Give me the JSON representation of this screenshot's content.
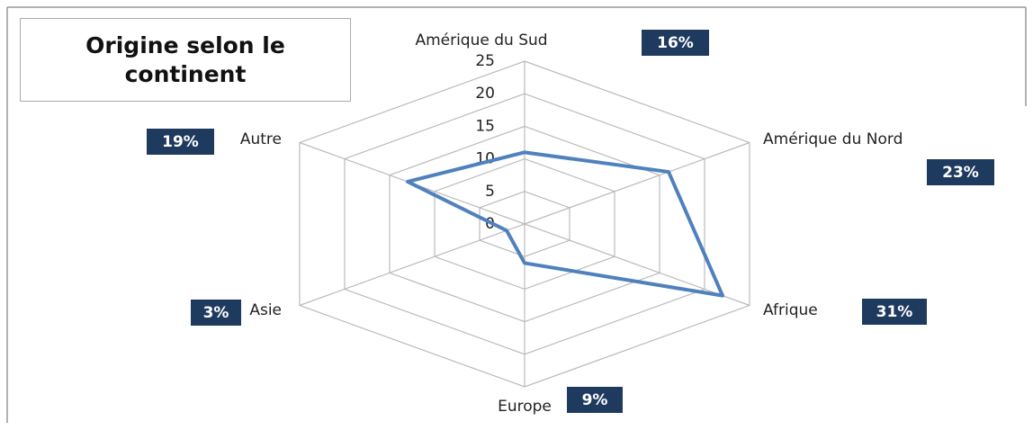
{
  "chart_data": {
    "type": "radar",
    "title": "Origine selon le continent",
    "categories": [
      "Amérique du Sud",
      "Amérique du Nord",
      "Afrique",
      "Europe",
      "Asie",
      "Autre"
    ],
    "series": [
      {
        "color": "#4f81bd",
        "values": [
          11,
          16,
          22,
          6,
          2,
          13
        ]
      }
    ],
    "percent_labels": [
      "16%",
      "23%",
      "31%",
      "9%",
      "3%",
      "19%"
    ],
    "ylim": [
      0,
      25
    ],
    "yticks": [
      0,
      5,
      10,
      15,
      20,
      25
    ],
    "grid": true
  }
}
